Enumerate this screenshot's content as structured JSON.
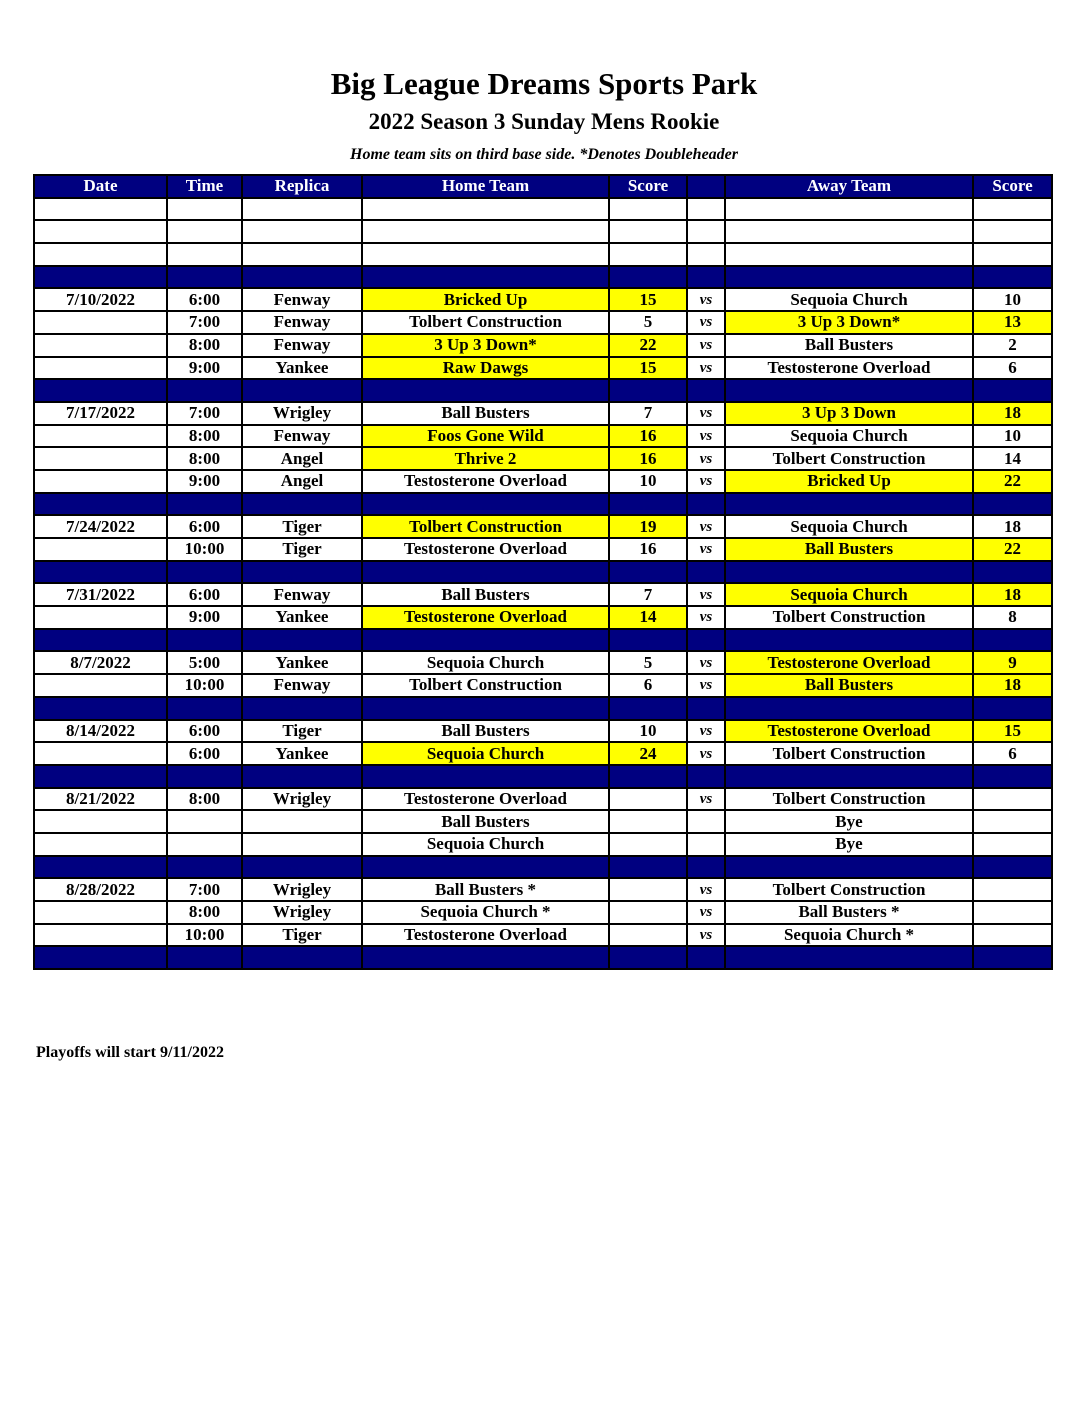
{
  "header": {
    "title": "Big League Dreams Sports Park",
    "subtitle": "2022 Season 3 Sunday Mens Rookie",
    "note": "Home team sits on third base side.  *Denotes Doubleheader"
  },
  "colors": {
    "header_bg": "#000080",
    "winner_highlight": "#ffff00"
  },
  "columns": [
    "Date",
    "Time",
    "Replica",
    "Home Team",
    "Score",
    "",
    "Away Team",
    "Score"
  ],
  "rows": [
    {
      "type": "blank"
    },
    {
      "type": "blank"
    },
    {
      "type": "blank"
    },
    {
      "type": "sep"
    },
    {
      "date": "7/10/2022",
      "time": "6:00",
      "field": "Fenway",
      "home": "Bricked Up",
      "home_score": "15",
      "vs": "vs",
      "away": "Sequoia Church",
      "away_score": "10",
      "winner": "home"
    },
    {
      "date": "",
      "time": "7:00",
      "field": "Fenway",
      "home": "Tolbert Construction",
      "home_score": "5",
      "vs": "vs",
      "away": "3 Up 3 Down*",
      "away_score": "13",
      "winner": "away"
    },
    {
      "date": "",
      "time": "8:00",
      "field": "Fenway",
      "home": "3 Up 3 Down*",
      "home_score": "22",
      "vs": "vs",
      "away": "Ball Busters",
      "away_score": "2",
      "winner": "home"
    },
    {
      "date": "",
      "time": "9:00",
      "field": "Yankee",
      "home": "Raw Dawgs",
      "home_score": "15",
      "vs": "vs",
      "away": "Testosterone Overload",
      "away_score": "6",
      "winner": "home"
    },
    {
      "type": "sep"
    },
    {
      "date": "7/17/2022",
      "time": "7:00",
      "field": "Wrigley",
      "home": "Ball Busters",
      "home_score": "7",
      "vs": "vs",
      "away": "3 Up 3 Down",
      "away_score": "18",
      "winner": "away"
    },
    {
      "date": "",
      "time": "8:00",
      "field": "Fenway",
      "home": "Foos Gone Wild",
      "home_score": "16",
      "vs": "vs",
      "away": "Sequoia Church",
      "away_score": "10",
      "winner": "home"
    },
    {
      "date": "",
      "time": "8:00",
      "field": "Angel",
      "home": "Thrive 2",
      "home_score": "16",
      "vs": "vs",
      "away": "Tolbert Construction",
      "away_score": "14",
      "winner": "home"
    },
    {
      "date": "",
      "time": "9:00",
      "field": "Angel",
      "home": "Testosterone Overload",
      "home_score": "10",
      "vs": "vs",
      "away": "Bricked Up",
      "away_score": "22",
      "winner": "away"
    },
    {
      "type": "sep"
    },
    {
      "date": "7/24/2022",
      "time": "6:00",
      "field": "Tiger",
      "home": "Tolbert Construction",
      "home_score": "19",
      "vs": "vs",
      "away": "Sequoia Church",
      "away_score": "18",
      "winner": "home"
    },
    {
      "date": "",
      "time": "10:00",
      "field": "Tiger",
      "home": "Testosterone Overload",
      "home_score": "16",
      "vs": "vs",
      "away": "Ball Busters",
      "away_score": "22",
      "winner": "away"
    },
    {
      "type": "sep"
    },
    {
      "date": "7/31/2022",
      "time": "6:00",
      "field": "Fenway",
      "home": "Ball Busters",
      "home_score": "7",
      "vs": "vs",
      "away": "Sequoia Church",
      "away_score": "18",
      "winner": "away"
    },
    {
      "date": "",
      "time": "9:00",
      "field": "Yankee",
      "home": "Testosterone Overload",
      "home_score": "14",
      "vs": "vs",
      "away": "Tolbert Construction",
      "away_score": "8",
      "winner": "home"
    },
    {
      "type": "sep"
    },
    {
      "date": "8/7/2022",
      "time": "5:00",
      "field": "Yankee",
      "home": "Sequoia Church",
      "home_score": "5",
      "vs": "vs",
      "away": "Testosterone Overload",
      "away_score": "9",
      "winner": "away"
    },
    {
      "date": "",
      "time": "10:00",
      "field": "Fenway",
      "home": "Tolbert Construction",
      "home_score": "6",
      "vs": "vs",
      "away": "Ball Busters",
      "away_score": "18",
      "winner": "away"
    },
    {
      "type": "sep"
    },
    {
      "date": "8/14/2022",
      "time": "6:00",
      "field": "Tiger",
      "home": "Ball Busters",
      "home_score": "10",
      "vs": "vs",
      "away": "Testosterone Overload",
      "away_score": "15",
      "winner": "away"
    },
    {
      "date": "",
      "time": "6:00",
      "field": "Yankee",
      "home": "Sequoia Church",
      "home_score": "24",
      "vs": "vs",
      "away": "Tolbert Construction",
      "away_score": "6",
      "winner": "home"
    },
    {
      "type": "sep"
    },
    {
      "date": "8/21/2022",
      "time": "8:00",
      "field": "Wrigley",
      "home": "Testosterone Overload",
      "home_score": "",
      "vs": "vs",
      "away": "Tolbert Construction",
      "away_score": ""
    },
    {
      "date": "",
      "time": "",
      "field": "",
      "home": "Ball Busters",
      "home_score": "",
      "vs": "",
      "away": "Bye",
      "away_score": ""
    },
    {
      "date": "",
      "time": "",
      "field": "",
      "home": "Sequoia Church",
      "home_score": "",
      "vs": "",
      "away": "Bye",
      "away_score": ""
    },
    {
      "type": "sep"
    },
    {
      "date": "8/28/2022",
      "time": "7:00",
      "field": "Wrigley",
      "home": "Ball Busters *",
      "home_score": "",
      "vs": "vs",
      "away": "Tolbert Construction",
      "away_score": ""
    },
    {
      "date": "",
      "time": "8:00",
      "field": "Wrigley",
      "home": "Sequoia Church *",
      "home_score": "",
      "vs": "vs",
      "away": "Ball Busters *",
      "away_score": ""
    },
    {
      "date": "",
      "time": "10:00",
      "field": "Tiger",
      "home": "Testosterone Overload",
      "home_score": "",
      "vs": "vs",
      "away": "Sequoia Church *",
      "away_score": ""
    },
    {
      "type": "sep"
    }
  ],
  "footer": "Playoffs will start 9/11/2022"
}
